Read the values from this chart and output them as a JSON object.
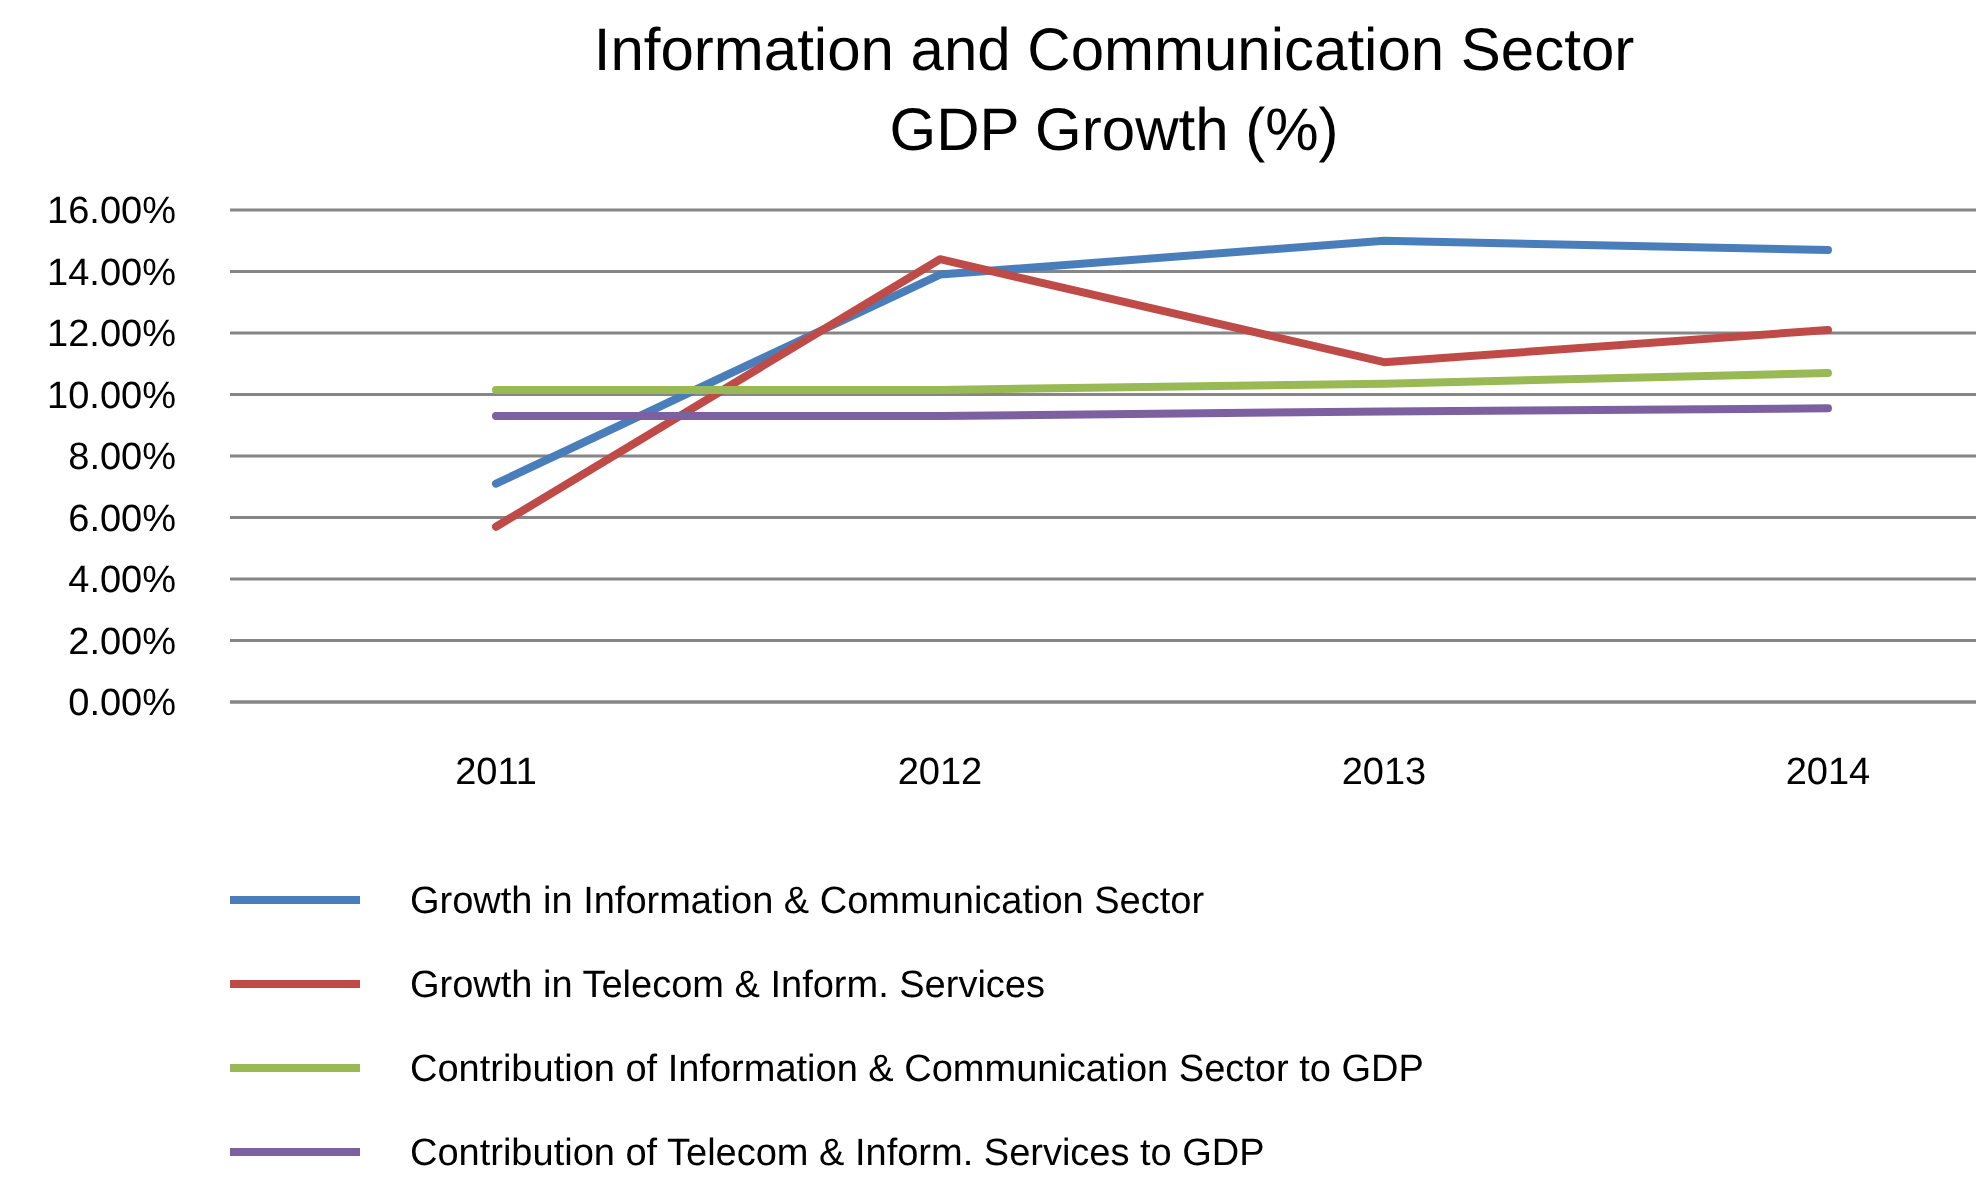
{
  "chart_data": {
    "type": "line",
    "title": "Information and Communication Sector\nGDP Growth (%)",
    "categories": [
      "2011",
      "2012",
      "2013",
      "2014"
    ],
    "series": [
      {
        "name": "Growth in Information & Communication Sector",
        "color": "#4a7ebb",
        "values": [
          7.1,
          13.9,
          15.0,
          14.7
        ]
      },
      {
        "name": "Growth in Telecom & Inform. Services",
        "color": "#be4b48",
        "values": [
          5.7,
          14.4,
          11.05,
          12.1
        ]
      },
      {
        "name": "Contribution of Information & Communication Sector to GDP",
        "color": "#98b954",
        "values": [
          10.15,
          10.15,
          10.35,
          10.7
        ]
      },
      {
        "name": "Contribution of Telecom & Inform. Services to GDP",
        "color": "#7d60a0",
        "values": [
          9.3,
          9.3,
          9.45,
          9.55
        ]
      }
    ],
    "ylim": [
      0,
      16
    ],
    "yticks": [
      {
        "value": 0,
        "label": "0.00%"
      },
      {
        "value": 2,
        "label": "2.00%"
      },
      {
        "value": 4,
        "label": "4.00%"
      },
      {
        "value": 6,
        "label": "6.00%"
      },
      {
        "value": 8,
        "label": "8.00%"
      },
      {
        "value": 10,
        "label": "10.00%"
      },
      {
        "value": 12,
        "label": "12.00%"
      },
      {
        "value": 14,
        "label": "14.00%"
      },
      {
        "value": 16,
        "label": "16.00%"
      }
    ],
    "grid": "y",
    "legend": "bottom",
    "marker": "none",
    "line_style": "solid"
  }
}
